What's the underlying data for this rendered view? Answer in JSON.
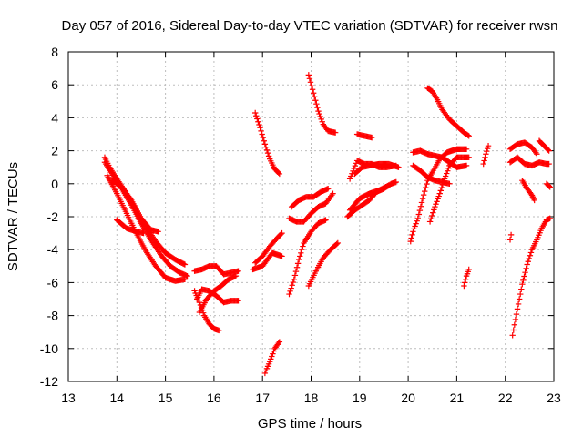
{
  "chart_data": {
    "type": "scatter",
    "title": "Day 057 of 2016, Sidereal Day-to-day VTEC variation (SDTVAR) for receiver rwsn",
    "xlabel": "GPS time / hours",
    "ylabel": "SDTVAR / TECUs",
    "xlim": [
      13,
      23
    ],
    "ylim": [
      -12,
      8
    ],
    "xticks": [
      13,
      14,
      15,
      16,
      17,
      18,
      19,
      20,
      21,
      22,
      23
    ],
    "yticks": [
      -12,
      -10,
      -8,
      -6,
      -4,
      -2,
      0,
      2,
      4,
      6,
      8
    ],
    "grid": true,
    "legend": "none",
    "marker": "plus",
    "color": "#ff0000",
    "series": [
      {
        "points": [
          [
            13.75,
            1.6
          ],
          [
            13.85,
            1.0
          ],
          [
            14.0,
            0.3
          ],
          [
            14.2,
            -0.6
          ],
          [
            14.4,
            -1.6
          ],
          [
            14.6,
            -2.6
          ],
          [
            14.8,
            -3.5
          ],
          [
            15.0,
            -4.2
          ],
          [
            15.2,
            -4.6
          ],
          [
            15.4,
            -4.9
          ]
        ]
      },
      {
        "points": [
          [
            13.75,
            1.3
          ],
          [
            13.9,
            0.6
          ],
          [
            14.1,
            -0.3
          ],
          [
            14.3,
            -1.3
          ],
          [
            14.5,
            -2.4
          ],
          [
            14.7,
            -3.4
          ],
          [
            14.9,
            -4.3
          ],
          [
            15.1,
            -5.0
          ],
          [
            15.3,
            -5.4
          ],
          [
            15.45,
            -5.6
          ]
        ]
      },
      {
        "points": [
          [
            13.8,
            0.5
          ],
          [
            14.0,
            -0.6
          ],
          [
            14.2,
            -1.8
          ],
          [
            14.4,
            -3.0
          ],
          [
            14.6,
            -4.1
          ],
          [
            14.8,
            -5.0
          ],
          [
            15.0,
            -5.7
          ],
          [
            15.2,
            -5.9
          ],
          [
            15.4,
            -5.8
          ]
        ]
      },
      {
        "points": [
          [
            13.9,
            0.2
          ],
          [
            14.1,
            -0.2
          ],
          [
            14.3,
            -1.0
          ],
          [
            14.5,
            -2.1
          ],
          [
            14.7,
            -2.8
          ],
          [
            14.85,
            -2.9
          ]
        ]
      },
      {
        "points": [
          [
            14.0,
            -2.2
          ],
          [
            14.2,
            -2.7
          ],
          [
            14.4,
            -2.9
          ],
          [
            14.55,
            -3.0
          ]
        ]
      },
      {
        "points": [
          [
            15.6,
            -5.3
          ],
          [
            15.75,
            -5.2
          ],
          [
            15.9,
            -5.0
          ],
          [
            16.05,
            -5.0
          ],
          [
            16.2,
            -5.5
          ],
          [
            16.35,
            -5.4
          ],
          [
            16.5,
            -5.3
          ]
        ]
      },
      {
        "points": [
          [
            15.6,
            -6.5
          ],
          [
            15.7,
            -7.2
          ],
          [
            15.8,
            -8.0
          ],
          [
            15.9,
            -8.5
          ],
          [
            16.0,
            -8.8
          ],
          [
            16.1,
            -8.9
          ]
        ]
      },
      {
        "points": [
          [
            15.65,
            -7.0
          ],
          [
            15.75,
            -6.4
          ],
          [
            15.9,
            -6.5
          ],
          [
            16.05,
            -6.8
          ],
          [
            16.2,
            -7.2
          ],
          [
            16.35,
            -7.1
          ],
          [
            16.5,
            -7.1
          ]
        ]
      },
      {
        "points": [
          [
            15.7,
            -7.8
          ],
          [
            15.85,
            -7.0
          ],
          [
            16.0,
            -6.5
          ],
          [
            16.15,
            -6.2
          ],
          [
            16.3,
            -5.8
          ],
          [
            16.45,
            -5.6
          ]
        ]
      },
      {
        "points": [
          [
            16.8,
            -5.2
          ],
          [
            16.9,
            -5.1
          ],
          [
            17.0,
            -5.0
          ],
          [
            17.1,
            -4.6
          ],
          [
            17.2,
            -4.2
          ],
          [
            17.3,
            -4.3
          ],
          [
            17.4,
            -4.4
          ]
        ]
      },
      {
        "points": [
          [
            16.85,
            -4.8
          ],
          [
            17.0,
            -4.4
          ],
          [
            17.15,
            -3.8
          ],
          [
            17.3,
            -3.3
          ],
          [
            17.4,
            -3.0
          ]
        ]
      },
      {
        "points": [
          [
            16.85,
            4.3
          ],
          [
            16.95,
            3.4
          ],
          [
            17.05,
            2.4
          ],
          [
            17.15,
            1.5
          ],
          [
            17.25,
            0.9
          ],
          [
            17.35,
            0.6
          ]
        ]
      },
      {
        "points": [
          [
            17.05,
            -11.5
          ],
          [
            17.15,
            -10.8
          ],
          [
            17.25,
            -10.0
          ],
          [
            17.35,
            -9.6
          ]
        ]
      },
      {
        "points": [
          [
            17.55,
            -6.7
          ],
          [
            17.65,
            -5.8
          ],
          [
            17.75,
            -4.6
          ],
          [
            17.85,
            -3.6
          ],
          [
            18.0,
            -2.9
          ],
          [
            18.15,
            -2.4
          ],
          [
            18.3,
            -2.2
          ]
        ]
      },
      {
        "points": [
          [
            17.55,
            -2.1
          ],
          [
            17.7,
            -2.3
          ],
          [
            17.85,
            -2.3
          ],
          [
            18.0,
            -1.8
          ],
          [
            18.15,
            -1.4
          ],
          [
            18.3,
            -1.2
          ],
          [
            18.45,
            -0.6
          ]
        ]
      },
      {
        "points": [
          [
            17.6,
            -1.4
          ],
          [
            17.75,
            -1.0
          ],
          [
            17.9,
            -0.8
          ],
          [
            18.05,
            -0.8
          ],
          [
            18.2,
            -0.5
          ],
          [
            18.35,
            -0.3
          ]
        ]
      },
      {
        "points": [
          [
            17.95,
            -6.2
          ],
          [
            18.1,
            -5.3
          ],
          [
            18.25,
            -4.5
          ],
          [
            18.4,
            -4.0
          ],
          [
            18.55,
            -3.6
          ]
        ]
      },
      {
        "points": [
          [
            17.95,
            6.6
          ],
          [
            18.05,
            5.5
          ],
          [
            18.15,
            4.4
          ],
          [
            18.25,
            3.6
          ],
          [
            18.35,
            3.2
          ],
          [
            18.5,
            3.1
          ]
        ]
      },
      {
        "points": [
          [
            18.75,
            -2.0
          ],
          [
            18.9,
            -1.6
          ],
          [
            19.05,
            -1.3
          ],
          [
            19.2,
            -1.0
          ],
          [
            19.35,
            -0.5
          ],
          [
            19.5,
            -0.3
          ],
          [
            19.65,
            0.0
          ],
          [
            19.75,
            0.1
          ]
        ]
      },
      {
        "points": [
          [
            18.8,
            -1.6
          ],
          [
            19.0,
            -0.9
          ],
          [
            19.2,
            -0.6
          ],
          [
            19.4,
            -0.4
          ],
          [
            19.6,
            -0.1
          ]
        ]
      },
      {
        "points": [
          [
            18.8,
            0.3
          ],
          [
            18.95,
            1.4
          ],
          [
            19.1,
            1.2
          ],
          [
            19.25,
            1.2
          ],
          [
            19.4,
            1.0
          ],
          [
            19.55,
            1.0
          ],
          [
            19.75,
            1.1
          ]
        ]
      },
      {
        "points": [
          [
            18.9,
            0.6
          ],
          [
            19.05,
            1.0
          ],
          [
            19.2,
            1.1
          ],
          [
            19.4,
            1.2
          ],
          [
            19.6,
            1.2
          ],
          [
            19.8,
            1.0
          ]
        ]
      },
      {
        "points": [
          [
            18.95,
            3.0
          ],
          [
            19.1,
            2.9
          ],
          [
            19.25,
            2.8
          ]
        ]
      },
      {
        "points": [
          [
            20.05,
            -3.5
          ],
          [
            20.1,
            -2.9
          ],
          [
            20.2,
            -2.1
          ],
          [
            20.3,
            -0.9
          ],
          [
            20.4,
            0.2
          ],
          [
            20.5,
            0.7
          ],
          [
            20.65,
            1.5
          ],
          [
            20.8,
            1.9
          ],
          [
            21.0,
            2.1
          ],
          [
            21.2,
            2.1
          ]
        ]
      },
      {
        "points": [
          [
            20.1,
            1.9
          ],
          [
            20.25,
            2.0
          ],
          [
            20.4,
            1.8
          ],
          [
            20.55,
            1.7
          ],
          [
            20.7,
            1.6
          ],
          [
            20.85,
            1.3
          ],
          [
            21.0,
            1.0
          ],
          [
            21.2,
            1.1
          ]
        ]
      },
      {
        "points": [
          [
            20.1,
            1.1
          ],
          [
            20.25,
            0.8
          ],
          [
            20.4,
            0.4
          ],
          [
            20.55,
            0.2
          ],
          [
            20.7,
            0.1
          ],
          [
            20.85,
            0.0
          ]
        ]
      },
      {
        "points": [
          [
            20.45,
            -2.3
          ],
          [
            20.55,
            -1.4
          ],
          [
            20.65,
            -0.6
          ],
          [
            20.75,
            0.3
          ],
          [
            20.85,
            1.1
          ],
          [
            21.0,
            1.6
          ],
          [
            21.15,
            1.6
          ],
          [
            21.25,
            1.6
          ]
        ]
      },
      {
        "points": [
          [
            20.4,
            5.8
          ],
          [
            20.5,
            5.6
          ],
          [
            20.6,
            5.1
          ],
          [
            20.7,
            4.5
          ],
          [
            20.85,
            3.9
          ],
          [
            21.0,
            3.5
          ],
          [
            21.15,
            3.1
          ],
          [
            21.25,
            2.9
          ]
        ]
      },
      {
        "points": [
          [
            21.15,
            -6.2
          ],
          [
            21.2,
            -5.6
          ],
          [
            21.25,
            -5.2
          ]
        ]
      },
      {
        "points": [
          [
            21.55,
            1.2
          ],
          [
            21.6,
            1.8
          ],
          [
            21.65,
            2.3
          ]
        ]
      },
      {
        "points": [
          [
            22.1,
            -3.4
          ],
          [
            22.12,
            -3.1
          ]
        ]
      },
      {
        "points": [
          [
            22.1,
            1.3
          ],
          [
            22.25,
            1.6
          ],
          [
            22.4,
            1.2
          ],
          [
            22.55,
            1.1
          ],
          [
            22.7,
            1.3
          ],
          [
            22.85,
            1.2
          ],
          [
            22.9,
            1.2
          ]
        ]
      },
      {
        "points": [
          [
            22.1,
            2.1
          ],
          [
            22.25,
            2.4
          ],
          [
            22.4,
            2.5
          ],
          [
            22.55,
            2.2
          ],
          [
            22.65,
            1.8
          ]
        ]
      },
      {
        "points": [
          [
            22.35,
            0.2
          ],
          [
            22.45,
            -0.3
          ],
          [
            22.55,
            -0.7
          ],
          [
            22.6,
            -1.0
          ]
        ]
      },
      {
        "points": [
          [
            22.15,
            -9.2
          ],
          [
            22.25,
            -7.6
          ],
          [
            22.35,
            -6.1
          ],
          [
            22.45,
            -4.9
          ],
          [
            22.55,
            -4.0
          ],
          [
            22.65,
            -3.4
          ],
          [
            22.75,
            -2.7
          ],
          [
            22.85,
            -2.2
          ],
          [
            22.92,
            -2.1
          ]
        ]
      },
      {
        "points": [
          [
            22.7,
            2.6
          ],
          [
            22.8,
            2.3
          ],
          [
            22.9,
            2.0
          ]
        ]
      },
      {
        "points": [
          [
            22.85,
            0.0
          ],
          [
            22.92,
            -0.2
          ]
        ]
      }
    ]
  }
}
